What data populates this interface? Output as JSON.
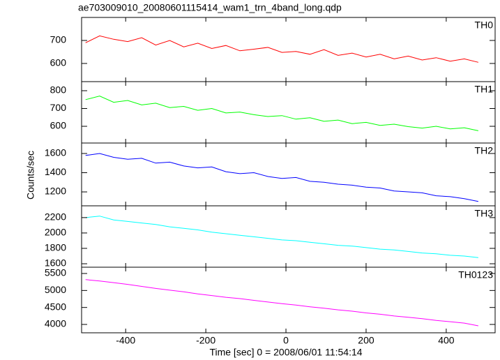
{
  "figure": {
    "title": "ae703009010_20080601115414_wam1_trn_4band_long.qdp",
    "xlabel": "Time [sec] 0 = 2008/06/01 11:54:14",
    "ylabel": "Counts/sec",
    "xlim": [
      -510,
      522
    ],
    "xticks": [
      -400,
      -200,
      0,
      200,
      400
    ]
  },
  "chart_data": [
    {
      "type": "line",
      "x": [
        -500,
        -465,
        -430,
        -395,
        -360,
        -325,
        -290,
        -255,
        -220,
        -185,
        -150,
        -115,
        -80,
        -45,
        -10,
        25,
        60,
        95,
        130,
        165,
        200,
        235,
        270,
        305,
        340,
        375,
        410,
        445,
        480
      ],
      "series": [
        {
          "name": "TH0",
          "color": "#ff0000",
          "values": [
            690,
            720,
            705,
            695,
            712,
            680,
            700,
            672,
            688,
            665,
            678,
            655,
            662,
            670,
            648,
            652,
            640,
            660,
            635,
            645,
            628,
            640,
            620,
            632,
            615,
            625,
            610,
            620,
            605
          ]
        }
      ],
      "ylim": [
        521,
        800
      ],
      "yticks": [
        600,
        700
      ]
    },
    {
      "type": "line",
      "x": [
        -500,
        -465,
        -430,
        -395,
        -360,
        -325,
        -290,
        -255,
        -220,
        -185,
        -150,
        -115,
        -80,
        -45,
        -10,
        25,
        60,
        95,
        130,
        165,
        200,
        235,
        270,
        305,
        340,
        375,
        410,
        445,
        480
      ],
      "series": [
        {
          "name": "TH1",
          "color": "#00ff00",
          "values": [
            750,
            770,
            735,
            745,
            720,
            730,
            705,
            712,
            690,
            700,
            675,
            680,
            665,
            655,
            660,
            640,
            648,
            628,
            635,
            615,
            622,
            605,
            612,
            598,
            590,
            600,
            585,
            592,
            575
          ]
        }
      ],
      "ylim": [
        506,
        851
      ],
      "yticks": [
        600,
        700,
        800
      ]
    },
    {
      "type": "line",
      "x": [
        -500,
        -465,
        -430,
        -395,
        -360,
        -325,
        -290,
        -255,
        -220,
        -185,
        -150,
        -115,
        -80,
        -45,
        -10,
        25,
        60,
        95,
        130,
        165,
        200,
        235,
        270,
        305,
        340,
        375,
        410,
        445,
        480
      ],
      "series": [
        {
          "name": "TH2",
          "color": "#0000ff",
          "values": [
            1580,
            1600,
            1560,
            1540,
            1550,
            1500,
            1510,
            1470,
            1450,
            1460,
            1410,
            1390,
            1400,
            1360,
            1340,
            1350,
            1310,
            1300,
            1280,
            1270,
            1250,
            1240,
            1210,
            1200,
            1190,
            1160,
            1150,
            1130,
            1100
          ]
        }
      ],
      "ylim": [
        1055,
        1709
      ],
      "yticks": [
        1200,
        1400,
        1600
      ]
    },
    {
      "type": "line",
      "x": [
        -500,
        -465,
        -430,
        -395,
        -360,
        -325,
        -290,
        -255,
        -220,
        -185,
        -150,
        -115,
        -80,
        -45,
        -10,
        25,
        60,
        95,
        130,
        165,
        200,
        235,
        270,
        305,
        340,
        375,
        410,
        445,
        480
      ],
      "series": [
        {
          "name": "TH3",
          "color": "#00ffff",
          "values": [
            2200,
            2220,
            2170,
            2150,
            2130,
            2110,
            2080,
            2060,
            2040,
            2010,
            1990,
            1970,
            1950,
            1930,
            1910,
            1900,
            1880,
            1860,
            1840,
            1830,
            1810,
            1790,
            1780,
            1760,
            1740,
            1730,
            1710,
            1700,
            1680
          ]
        }
      ],
      "ylim": [
        1555,
        2353
      ],
      "yticks": [
        1600,
        1800,
        2000,
        2200
      ]
    },
    {
      "type": "line",
      "x": [
        -500,
        -465,
        -430,
        -395,
        -360,
        -325,
        -290,
        -255,
        -220,
        -185,
        -150,
        -115,
        -80,
        -45,
        -10,
        25,
        60,
        95,
        130,
        165,
        200,
        235,
        270,
        305,
        340,
        375,
        410,
        445,
        480
      ],
      "series": [
        {
          "name": "TH0123",
          "color": "#ff00ff",
          "values": [
            5320,
            5280,
            5230,
            5180,
            5120,
            5060,
            5010,
            4960,
            4900,
            4850,
            4800,
            4760,
            4710,
            4660,
            4610,
            4570,
            4520,
            4480,
            4430,
            4390,
            4340,
            4300,
            4250,
            4210,
            4170,
            4120,
            4080,
            4040,
            3960
          ]
        }
      ],
      "ylim": [
        3754,
        5685
      ],
      "yticks": [
        4000,
        4500,
        5000,
        5500
      ]
    }
  ]
}
